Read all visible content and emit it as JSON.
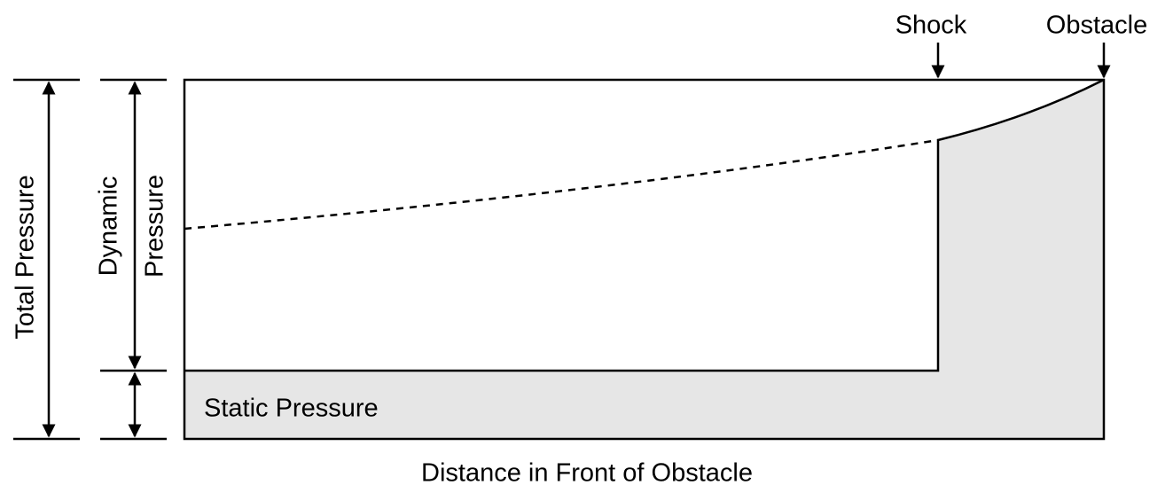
{
  "labels": {
    "shock": "Shock",
    "obstacle": "Obstacle",
    "total_pressure": "Total Pressure",
    "dynamic_pressure_line1": "Dynamic",
    "dynamic_pressure_line2": "Pressure",
    "static_pressure": "Static Pressure",
    "x_axis": "Distance in Front of Obstacle"
  }
}
